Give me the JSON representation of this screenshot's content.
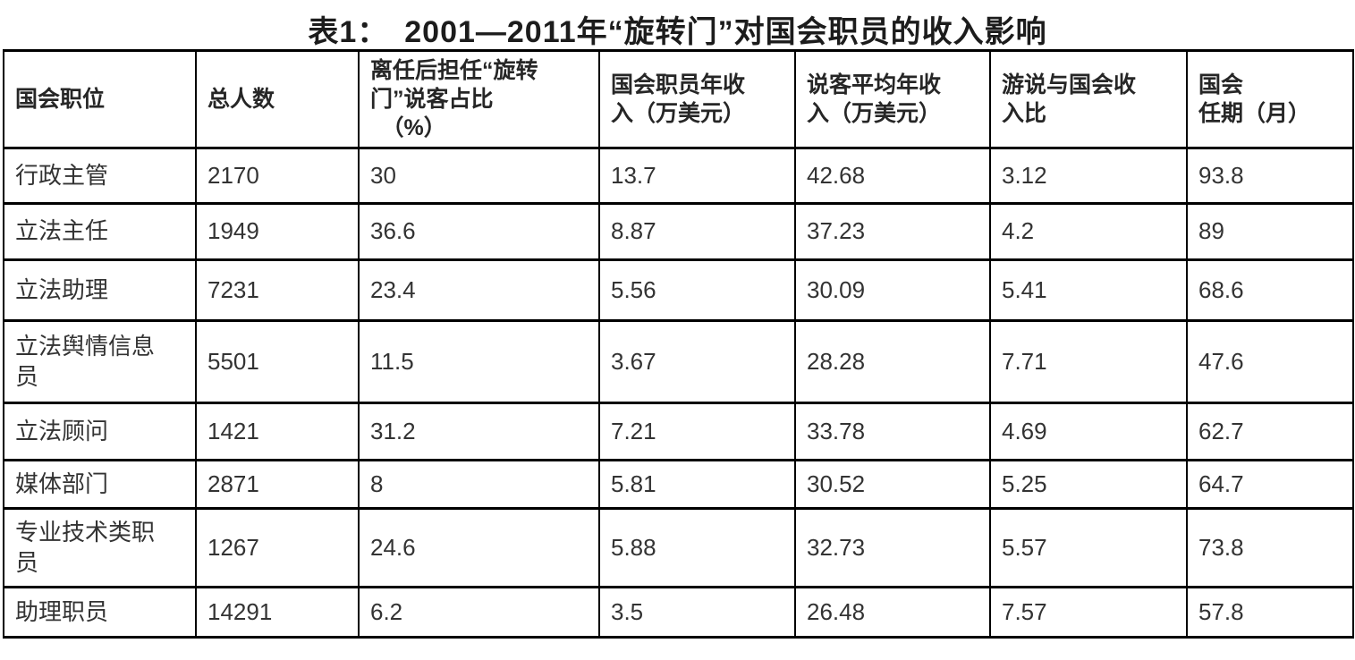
{
  "page": {
    "title": "表1：　2001—2011年“旋转门”对国会职员的收入影响"
  },
  "table": {
    "headers": [
      "国会职位",
      "总人数",
      "离任后担任“旋转\n门”说客占比\n　（%）",
      "国会职员年收\n入（万美元）",
      "说客平均年收\n入（万美元）",
      "游说与国会收\n入比",
      "国会\n任期（月）"
    ],
    "rows": [
      [
        "行政主管",
        "2170",
        "30",
        "13.7",
        "42.68",
        "3.12",
        "93.8"
      ],
      [
        "立法主任",
        "1949",
        "36.6",
        "8.87",
        "37.23",
        "4.2",
        "89"
      ],
      [
        "立法助理",
        "7231",
        "23.4",
        "5.56",
        "30.09",
        "5.41",
        "68.6"
      ],
      [
        "立法舆情信息\n员",
        "5501",
        "11.5",
        "3.67",
        "28.28",
        "7.71",
        "47.6"
      ],
      [
        "立法顾问",
        "1421",
        "31.2",
        "7.21",
        "33.78",
        "4.69",
        "62.7"
      ],
      [
        "媒体部门",
        "2871",
        "8",
        "5.81",
        "30.52",
        "5.25",
        "64.7"
      ],
      [
        "专业技术类职\n员",
        "1267",
        "24.6",
        "5.88",
        "32.73",
        "5.57",
        "73.8"
      ],
      [
        "助理职员",
        "14291",
        "6.2",
        "3.5",
        "26.48",
        "7.57",
        "57.8"
      ]
    ]
  },
  "chart_data": {
    "type": "table",
    "title": "表1： 2001—2011年“旋转门”对国会职员的收入影响",
    "columns": [
      "国会职位",
      "总人数",
      "离任后担任“旋转门”说客占比（%）",
      "国会职员年收入（万美元）",
      "说客平均年收入（万美元）",
      "游说与国会收入比",
      "国会任期（月）"
    ],
    "rows": [
      {
        "国会职位": "行政主管",
        "总人数": 2170,
        "离任后担任旋转门说客占比_pct": 30,
        "国会职员年收入_万美元": 13.7,
        "说客平均年收入_万美元": 42.68,
        "游说与国会收入比": 3.12,
        "国会任期_月": 93.8
      },
      {
        "国会职位": "立法主任",
        "总人数": 1949,
        "离任后担任旋转门说客占比_pct": 36.6,
        "国会职员年收入_万美元": 8.87,
        "说客平均年收入_万美元": 37.23,
        "游说与国会收入比": 4.2,
        "国会任期_月": 89
      },
      {
        "国会职位": "立法助理",
        "总人数": 7231,
        "离任后担任旋转门说客占比_pct": 23.4,
        "国会职员年收入_万美元": 5.56,
        "说客平均年收入_万美元": 30.09,
        "游说与国会收入比": 5.41,
        "国会任期_月": 68.6
      },
      {
        "国会职位": "立法舆情信息员",
        "总人数": 5501,
        "离任后担任旋转门说客占比_pct": 11.5,
        "国会职员年收入_万美元": 3.67,
        "说客平均年收入_万美元": 28.28,
        "游说与国会收入比": 7.71,
        "国会任期_月": 47.6
      },
      {
        "国会职位": "立法顾问",
        "总人数": 1421,
        "离任后担任旋转门说客占比_pct": 31.2,
        "国会职员年收入_万美元": 7.21,
        "说客平均年收入_万美元": 33.78,
        "游说与国会收入比": 4.69,
        "国会任期_月": 62.7
      },
      {
        "国会职位": "媒体部门",
        "总人数": 2871,
        "离任后担任旋转门说客占比_pct": 8,
        "国会职员年收入_万美元": 5.81,
        "说客平均年收入_万美元": 30.52,
        "游说与国会收入比": 5.25,
        "国会任期_月": 64.7
      },
      {
        "国会职位": "专业技术类职员",
        "总人数": 1267,
        "离任后担任旋转门说客占比_pct": 24.6,
        "国会职员年收入_万美元": 5.88,
        "说客平均年收入_万美元": 32.73,
        "游说与国会收入比": 5.57,
        "国会任期_月": 73.8
      },
      {
        "国会职位": "助理职员",
        "总人数": 14291,
        "离任后担任旋转门说客占比_pct": 6.2,
        "国会职员年收入_万美元": 3.5,
        "说客平均年收入_万美元": 26.48,
        "游说与国会收入比": 7.57,
        "国会任期_月": 57.8
      }
    ],
    "layout": {
      "grid": true,
      "header_bold": true,
      "border_color": "#000000"
    }
  },
  "colors": {
    "background": "#ffffff",
    "border": "#000000",
    "title_text": "#1c1c1c",
    "header_text": "#262626",
    "body_text": "#333333"
  }
}
